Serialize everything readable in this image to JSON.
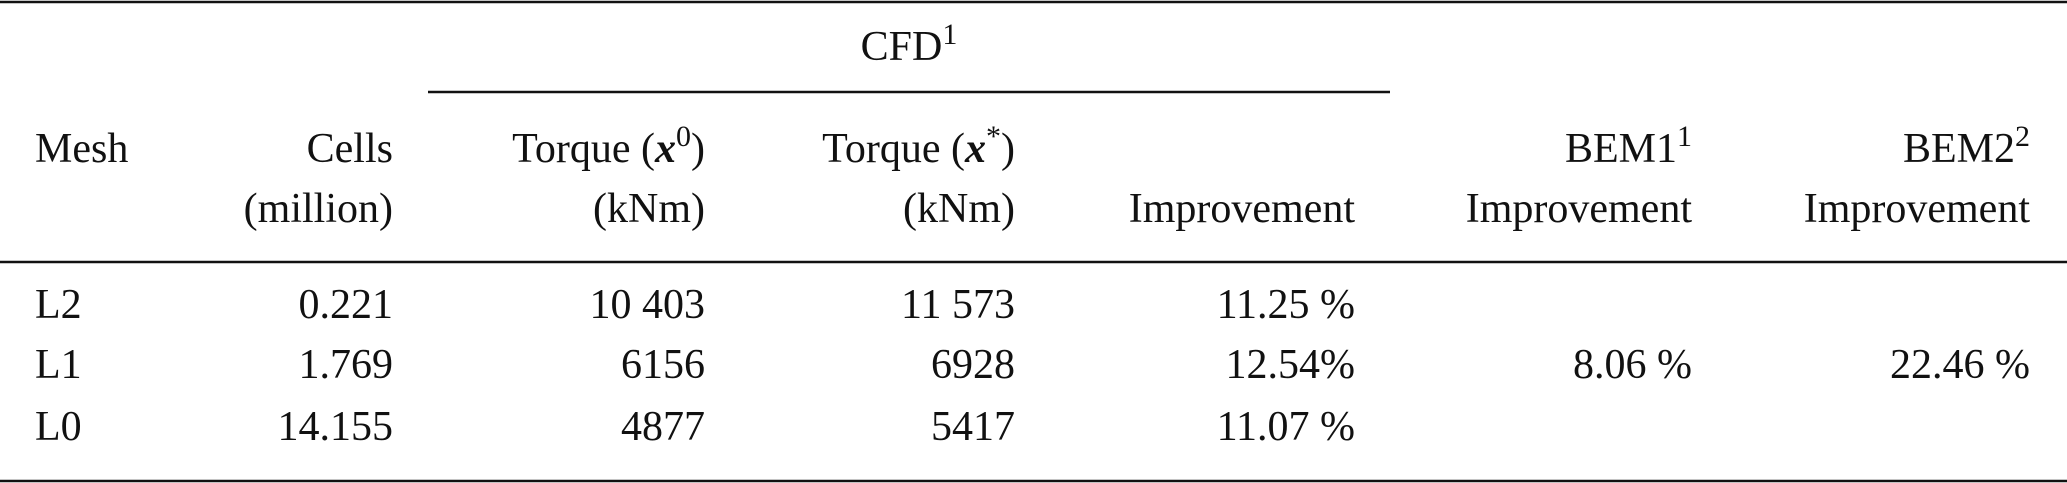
{
  "table": {
    "group_header": {
      "text": "CFD",
      "sup": "1"
    },
    "columns": [
      {
        "line1": "Mesh"
      },
      {
        "line1": "Cells",
        "line2": "(million)"
      },
      {
        "line1": {
          "prefix": "Torque (",
          "symbol": "x",
          "sup": "0",
          "suffix": ")"
        },
        "line2": "(kNm)"
      },
      {
        "line1": {
          "prefix": "Torque (",
          "symbol": "x",
          "sup": "*",
          "suffix": ")"
        },
        "line2": "(kNm)"
      },
      {
        "line2": "Improvement"
      },
      {
        "line1": {
          "text": "BEM1",
          "sup": "1"
        },
        "line2": "Improvement"
      },
      {
        "line1": {
          "text": "BEM2",
          "sup": "2"
        },
        "line2": "Improvement"
      }
    ],
    "rows": [
      [
        "L2",
        "0.221",
        "10 403",
        "11 573",
        "11.25 %"
      ],
      [
        "L1",
        "1.769",
        "6156",
        "6928",
        "12.54%"
      ],
      [
        "L0",
        "14.155",
        "4877",
        "5417",
        "11.07 %"
      ]
    ],
    "merged": [
      "8.06 %",
      "22.46 %"
    ]
  }
}
